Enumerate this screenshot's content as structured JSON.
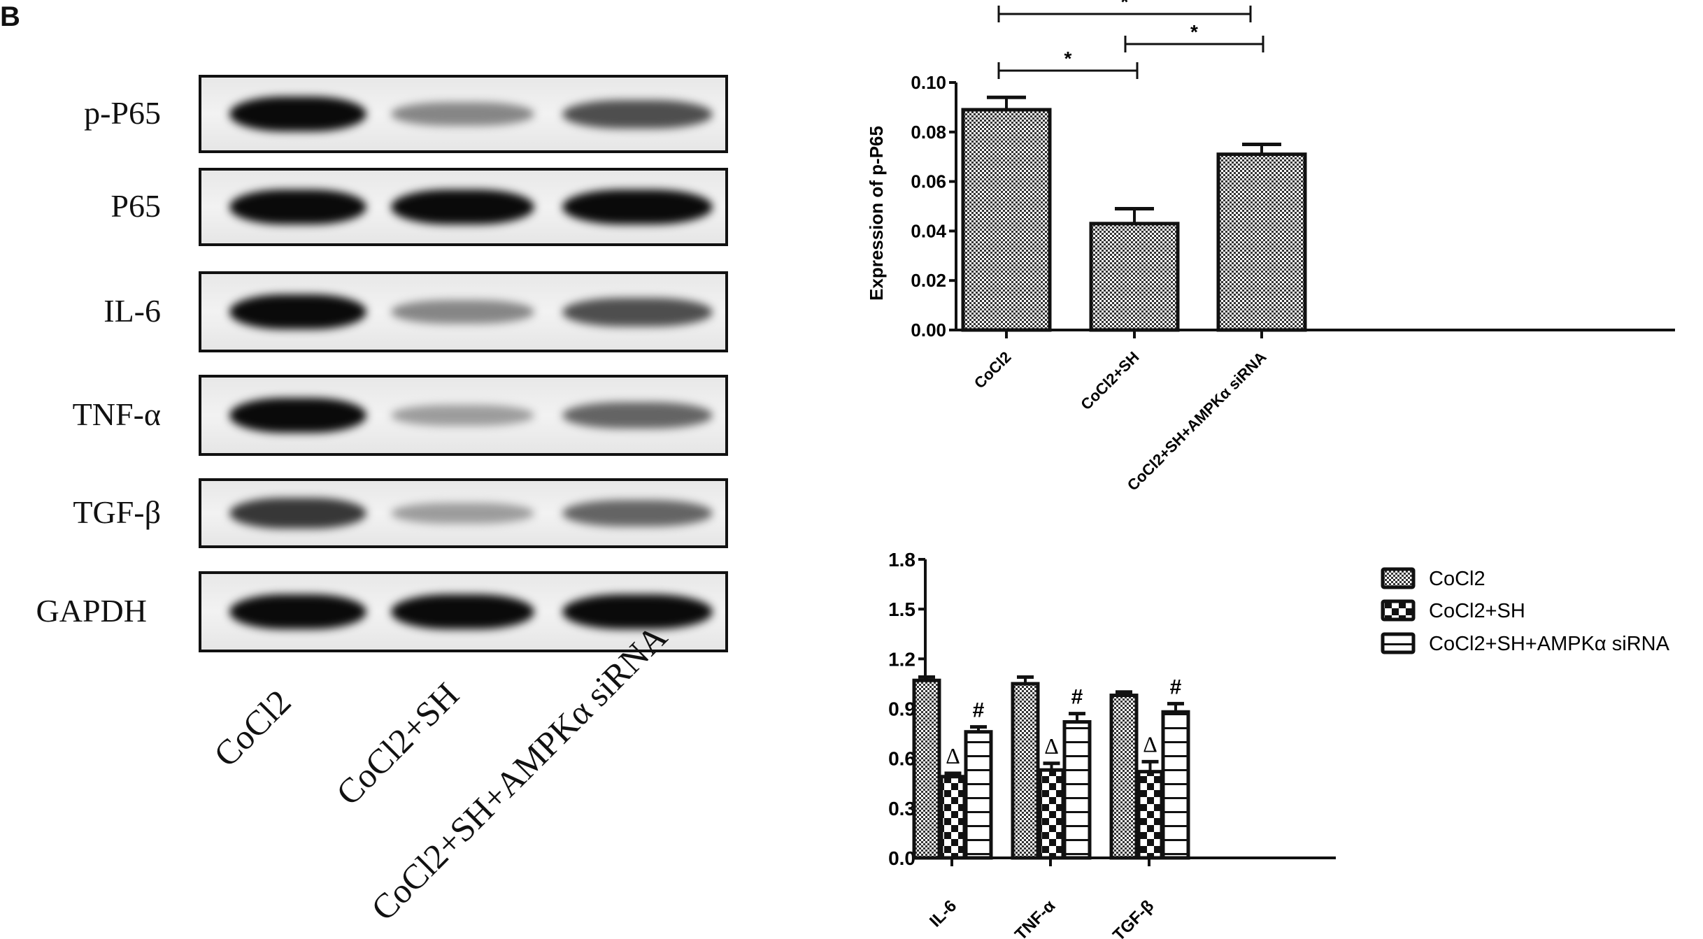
{
  "panel_label": "B",
  "western_blot": {
    "rows": [
      {
        "label": "p-P65",
        "intensity": [
          1.0,
          0.45,
          0.7
        ]
      },
      {
        "label": "P65",
        "intensity": [
          1.0,
          1.0,
          1.0
        ]
      },
      {
        "label": "IL-6",
        "intensity": [
          1.0,
          0.45,
          0.7
        ]
      },
      {
        "label": "TNF-α",
        "intensity": [
          1.0,
          0.35,
          0.6
        ]
      },
      {
        "label": "TGF-β",
        "intensity": [
          0.8,
          0.35,
          0.6
        ]
      },
      {
        "label": "GAPDH",
        "intensity": [
          1.0,
          1.0,
          1.0
        ]
      }
    ],
    "lanes": [
      "CoCl2",
      "CoCl2+SH",
      "CoCl2+SH+AMPKα siRNA"
    ]
  },
  "chart_data": [
    {
      "type": "bar",
      "title": "",
      "xlabel": "",
      "ylabel": "Expression of p-P65",
      "categories": [
        "CoCl2",
        "CoCl2+SH",
        "CoCl2+SH+AMPKα siRNA"
      ],
      "values": [
        0.089,
        0.043,
        0.071
      ],
      "errors": [
        0.005,
        0.006,
        0.004
      ],
      "ylim": [
        0,
        0.1
      ],
      "yticks": [
        "0.00",
        "0.02",
        "0.04",
        "0.06",
        "0.08",
        "0.10"
      ],
      "grid": false,
      "significance": [
        {
          "from": 0,
          "to": 1,
          "label": "*"
        },
        {
          "from": 1,
          "to": 2,
          "label": "*"
        },
        {
          "from": 0,
          "to": 2,
          "label": "*"
        }
      ]
    },
    {
      "type": "bar",
      "title": "",
      "xlabel": "",
      "ylabel": "",
      "categories": [
        "IL-6",
        "TNF-α",
        "TGF-β"
      ],
      "series": [
        {
          "name": "CoCl2",
          "values": [
            1.07,
            1.05,
            0.98
          ],
          "errors": [
            0.02,
            0.04,
            0.02
          ],
          "marker": ""
        },
        {
          "name": "CoCl2+SH",
          "values": [
            0.49,
            0.53,
            0.52
          ],
          "errors": [
            0.02,
            0.04,
            0.06
          ],
          "marker": "Δ"
        },
        {
          "name": "CoCl2+SH+AMPKα  siRNA",
          "values": [
            0.76,
            0.82,
            0.88
          ],
          "errors": [
            0.03,
            0.05,
            0.05
          ],
          "marker": "#"
        }
      ],
      "ylim": [
        0,
        1.8
      ],
      "yticks": [
        "0.0",
        "0.3",
        "0.6",
        "0.9",
        "1.2",
        "1.5",
        "1.8"
      ],
      "grid": false,
      "legend_position": "right"
    }
  ]
}
